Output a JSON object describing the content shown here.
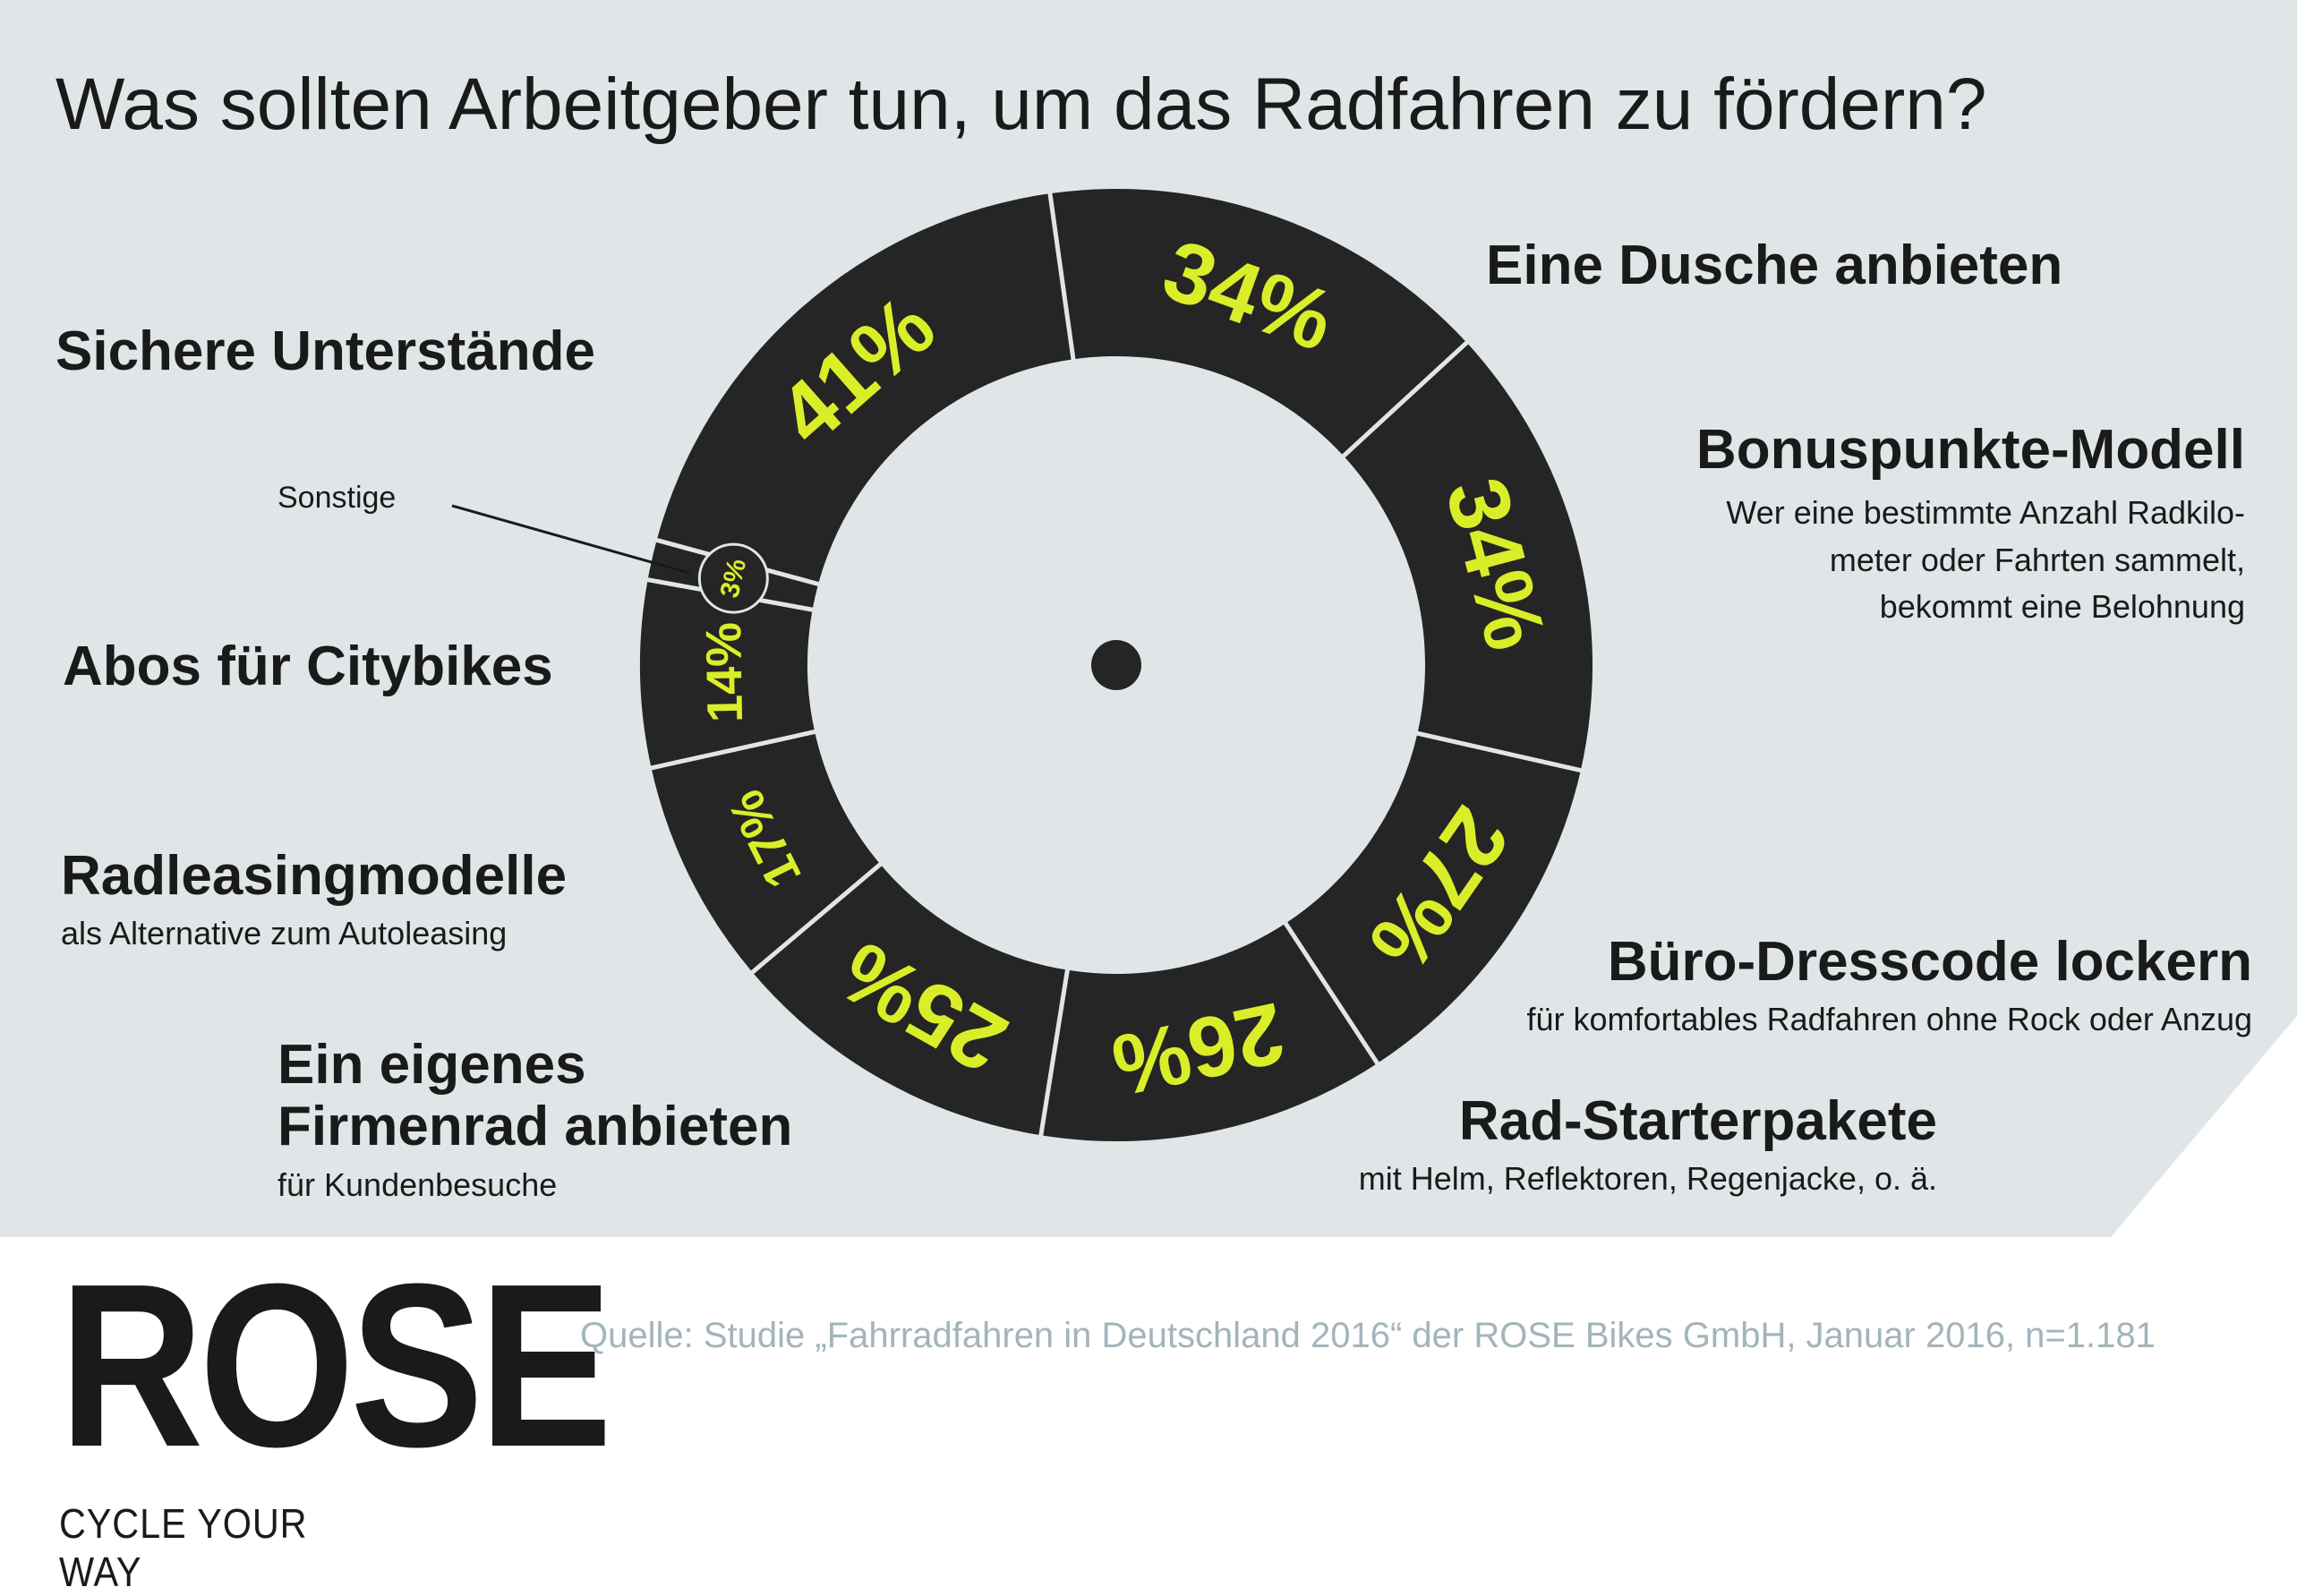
{
  "title": "Was sollten Arbeitgeber tun, um das Radfahren zu fördern?",
  "colors": {
    "background": "#e0e6e7",
    "ring": "#252525",
    "value_text": "#d9ee29",
    "text": "#1a1a1a",
    "source_text": "#a3b4bb"
  },
  "chart_data": {
    "type": "donut",
    "series": [
      {
        "label": "Eine Dusche anbieten",
        "value": 34,
        "value_label": "34%"
      },
      {
        "label": "Bonuspunkte-Modell",
        "sublabel": [
          "Wer eine bestimmte Anzahl Radkilo-",
          "meter oder Fahrten sammelt,",
          "bekommt eine Belohnung"
        ],
        "value": 34,
        "value_label": "34%"
      },
      {
        "label": "Büro-Dresscode lockern",
        "sublabel": [
          "für komfortables Radfahren ohne Rock oder Anzug"
        ],
        "value": 27,
        "value_label": "27%"
      },
      {
        "label": "Rad-Starterpakete",
        "sublabel": [
          "mit Helm, Reflektoren, Regenjacke, o. ä."
        ],
        "value": 26,
        "value_label": "26%"
      },
      {
        "label": [
          "Ein eigenes",
          "Firmenrad anbieten"
        ],
        "sublabel": [
          "für Kundenbesuche"
        ],
        "value": 25,
        "value_label": "25%"
      },
      {
        "label": "Radleasingmodelle",
        "sublabel": [
          "als Alternative zum Autoleasing"
        ],
        "value": 17,
        "value_label": "17%"
      },
      {
        "label": "Abos für Citybikes",
        "value": 14,
        "value_label": "14%"
      },
      {
        "label": "Sonstige",
        "value": 3,
        "value_label": "3%"
      },
      {
        "label": "Sichere Unterstände",
        "value": 41,
        "value_label": "41%"
      }
    ]
  },
  "logo": {
    "word": "ROSE",
    "tagline": "CYCLE YOUR WAY"
  },
  "source": "Quelle: Studie „Fahrradfahren in Deutschland 2016“ der ROSE Bikes GmbH, Januar 2016, n=1.181"
}
